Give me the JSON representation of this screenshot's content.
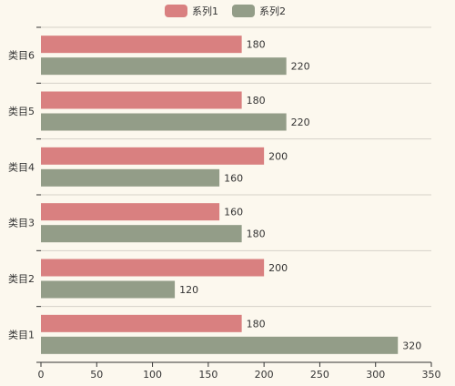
{
  "chart_data": {
    "type": "bar",
    "orientation": "horizontal",
    "categories": [
      "类目1",
      "类目2",
      "类目3",
      "类目4",
      "类目5",
      "类目6"
    ],
    "series": [
      {
        "name": "系列1",
        "color": "#d98080",
        "values": [
          180,
          200,
          160,
          200,
          180,
          180
        ]
      },
      {
        "name": "系列2",
        "color": "#939d88",
        "values": [
          320,
          120,
          180,
          160,
          220,
          220
        ]
      }
    ],
    "xlim": [
      0,
      350
    ],
    "x_ticks": [
      0,
      50,
      100,
      150,
      200,
      250,
      300,
      350
    ],
    "grid": "horizontal separators between categories",
    "legend_position": "top-center",
    "background": "#fcf8ee"
  }
}
